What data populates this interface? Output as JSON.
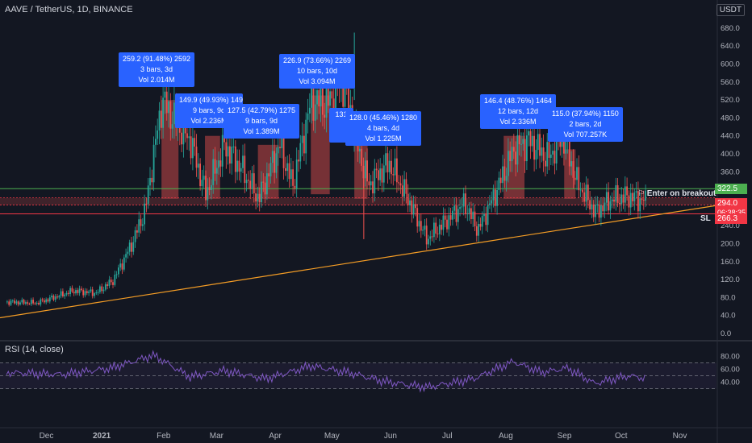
{
  "header": {
    "title": "AAVE / TetherUS, 1D, BINANCE",
    "currency": "USDT"
  },
  "rsi": {
    "title": "RSI (14, close)",
    "ticks": [
      "80.00",
      "60.00",
      "40.00"
    ]
  },
  "price_axis": {
    "ticks": [
      "680.0",
      "640.0",
      "600.0",
      "560.0",
      "520.0",
      "480.0",
      "440.0",
      "400.0",
      "360.0",
      "320.0",
      "280.0",
      "240.0",
      "200.0",
      "160.0",
      "120.0",
      "80.0",
      "40.0",
      "0.0"
    ]
  },
  "time_axis": {
    "labels": [
      "Dec",
      "2021",
      "Feb",
      "Mar",
      "Apr",
      "May",
      "Jun",
      "Jul",
      "Aug",
      "Sep",
      "Oct",
      "Nov"
    ]
  },
  "price_tags": {
    "target": "322.5",
    "current": "294.0",
    "countdown": "06:38:35",
    "stop": "266.3"
  },
  "annotations": {
    "enter": "Enter on breakout",
    "sl": "SL"
  },
  "measure_boxes": [
    {
      "lines": [
        "259.2 (91.48%) 2592",
        "3 bars, 3d",
        "Vol 2.014M"
      ]
    },
    {
      "lines": [
        "149.9 (49.93%) 1499",
        "9 bars, 9d",
        "Vol 2.236M"
      ]
    },
    {
      "lines": [
        "127.5 (42.79%) 1275",
        "9 bars, 9d",
        "Vol 1.389M"
      ]
    },
    {
      "lines": [
        "226.9 (73.66%) 2269",
        "10 bars, 10d",
        "Vol 3.094M"
      ]
    },
    {
      "lines": [
        "131"
      ]
    },
    {
      "lines": [
        "128.0 (45.46%) 1280",
        "4 bars, 4d",
        "Vol 1.225M"
      ]
    },
    {
      "lines": [
        "146.4 (48.76%) 1464",
        "12 bars, 12d",
        "Vol 2.336M"
      ]
    },
    {
      "lines": [
        "115.0 (37.94%) 1150",
        "2 bars, 2d",
        "Vol 707.257K"
      ]
    }
  ],
  "colors": {
    "background": "#131722",
    "up": "#26a69a",
    "down": "#ef5350",
    "target_line": "#4caf50",
    "stop_line": "#f23645",
    "trendline": "#f59d25",
    "rsi_line": "#7e57c2",
    "measure_box": "#2962ff"
  },
  "chart_data": {
    "type": "candlestick",
    "symbol": "AAVE / TetherUS",
    "interval": "1D",
    "exchange": "BINANCE",
    "ylim": [
      0,
      700
    ],
    "y_ticks": [
      0,
      40,
      80,
      120,
      160,
      200,
      240,
      280,
      320,
      360,
      400,
      440,
      480,
      520,
      560,
      600,
      640,
      680
    ],
    "close_path": [
      {
        "date": "2020-11-15",
        "close": 70
      },
      {
        "date": "2020-12-01",
        "close": 68
      },
      {
        "date": "2020-12-20",
        "close": 95
      },
      {
        "date": "2021-01-01",
        "close": 90
      },
      {
        "date": "2021-01-10",
        "close": 118
      },
      {
        "date": "2021-01-20",
        "close": 200
      },
      {
        "date": "2021-01-27",
        "close": 275
      },
      {
        "date": "2021-02-05",
        "close": 520
      },
      {
        "date": "2021-02-12",
        "close": 470
      },
      {
        "date": "2021-02-20",
        "close": 430
      },
      {
        "date": "2021-02-28",
        "close": 310
      },
      {
        "date": "2021-03-10",
        "close": 420
      },
      {
        "date": "2021-03-20",
        "close": 360
      },
      {
        "date": "2021-03-28",
        "close": 300
      },
      {
        "date": "2021-04-08",
        "close": 420
      },
      {
        "date": "2021-04-15",
        "close": 330
      },
      {
        "date": "2021-04-25",
        "close": 520
      },
      {
        "date": "2021-05-03",
        "close": 510
      },
      {
        "date": "2021-05-12",
        "close": 560
      },
      {
        "date": "2021-05-18",
        "close": 440
      },
      {
        "date": "2021-05-25",
        "close": 330
      },
      {
        "date": "2021-06-05",
        "close": 380
      },
      {
        "date": "2021-06-15",
        "close": 300
      },
      {
        "date": "2021-06-25",
        "close": 210
      },
      {
        "date": "2021-07-05",
        "close": 250
      },
      {
        "date": "2021-07-15",
        "close": 290
      },
      {
        "date": "2021-07-22",
        "close": 230
      },
      {
        "date": "2021-08-01",
        "close": 320
      },
      {
        "date": "2021-08-10",
        "close": 410
      },
      {
        "date": "2021-08-18",
        "close": 430
      },
      {
        "date": "2021-08-28",
        "close": 390
      },
      {
        "date": "2021-09-05",
        "close": 440
      },
      {
        "date": "2021-09-12",
        "close": 340
      },
      {
        "date": "2021-09-22",
        "close": 270
      },
      {
        "date": "2021-10-01",
        "close": 300
      },
      {
        "date": "2021-10-10",
        "close": 305
      },
      {
        "date": "2021-10-19",
        "close": 294
      }
    ],
    "levels": [
      {
        "label": "322.5",
        "price": 322.5
      },
      {
        "label": "294.0",
        "price": 294.0
      },
      {
        "label": "266.3",
        "price": 266.3
      }
    ],
    "rsi_ylim": [
      20,
      90
    ],
    "rsi_path": [
      {
        "date": "2020-11-15",
        "value": 55
      },
      {
        "date": "2020-12-15",
        "value": 52
      },
      {
        "date": "2021-01-10",
        "value": 62
      },
      {
        "date": "2021-02-01",
        "value": 82
      },
      {
        "date": "2021-02-20",
        "value": 48
      },
      {
        "date": "2021-03-10",
        "value": 58
      },
      {
        "date": "2021-04-01",
        "value": 45
      },
      {
        "date": "2021-04-25",
        "value": 65
      },
      {
        "date": "2021-05-15",
        "value": 55
      },
      {
        "date": "2021-06-01",
        "value": 42
      },
      {
        "date": "2021-06-25",
        "value": 32
      },
      {
        "date": "2021-07-20",
        "value": 45
      },
      {
        "date": "2021-08-10",
        "value": 72
      },
      {
        "date": "2021-08-25",
        "value": 55
      },
      {
        "date": "2021-09-08",
        "value": 62
      },
      {
        "date": "2021-09-22",
        "value": 38
      },
      {
        "date": "2021-10-10",
        "value": 50
      },
      {
        "date": "2021-10-19",
        "value": 46
      }
    ]
  }
}
